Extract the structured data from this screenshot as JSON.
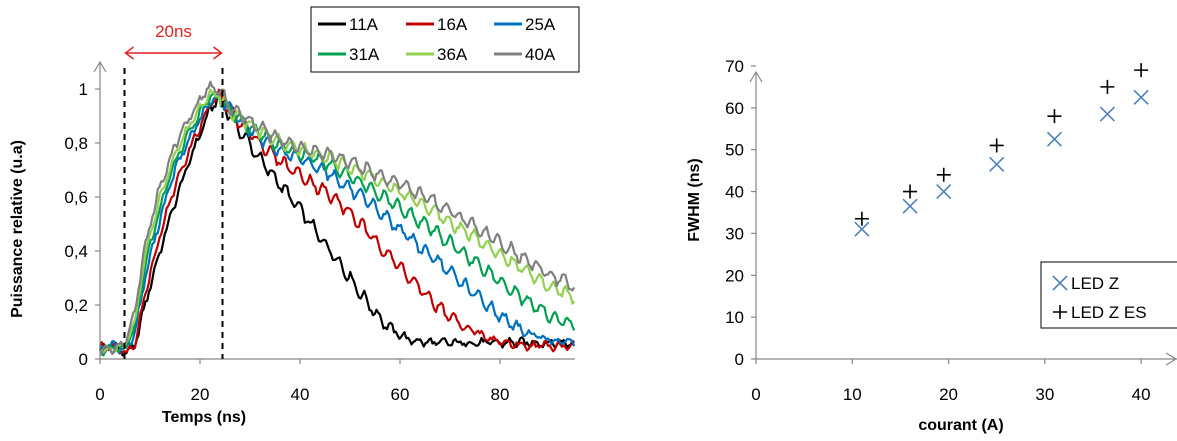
{
  "chart_data": [
    {
      "type": "line",
      "xlabel": "Temps (ns)",
      "ylabel": "Puissance relative (u.a)",
      "xlim": [
        0,
        95
      ],
      "ylim": [
        0,
        1.1
      ],
      "xticks": [
        "0",
        "20",
        "40",
        "60",
        "80"
      ],
      "yticks": [
        "0",
        "0,2",
        "0,4",
        "0,6",
        "0,8",
        "1"
      ],
      "grid": false,
      "legend_position": "top-right",
      "annotation": {
        "text": "20ns",
        "color": "#e02020",
        "x_start": 4.9,
        "x_end": 24.5
      },
      "series": [
        {
          "name": "11A",
          "color": "#000000",
          "x": [
            0,
            3,
            5,
            7,
            9,
            12,
            15,
            18,
            21,
            22,
            24,
            26,
            29,
            32,
            35,
            38,
            41,
            44,
            47,
            50,
            53,
            56,
            59,
            62,
            66,
            70,
            75,
            80,
            85,
            90,
            95
          ],
          "y": [
            0.04,
            0.05,
            0.02,
            0.05,
            0.2,
            0.4,
            0.58,
            0.74,
            0.88,
            0.92,
            0.98,
            0.9,
            0.82,
            0.74,
            0.67,
            0.6,
            0.53,
            0.45,
            0.38,
            0.3,
            0.22,
            0.15,
            0.1,
            0.07,
            0.06,
            0.06,
            0.06,
            0.06,
            0.06,
            0.06,
            0.06
          ]
        },
        {
          "name": "16A",
          "color": "#c00000",
          "x": [
            0,
            3,
            5,
            7,
            9,
            12,
            15,
            18,
            21,
            22,
            24,
            26,
            29,
            33,
            37,
            41,
            45,
            49,
            53,
            57,
            61,
            65,
            69,
            73,
            77,
            81,
            85,
            90,
            95
          ],
          "y": [
            0.04,
            0.05,
            0.02,
            0.06,
            0.24,
            0.46,
            0.64,
            0.78,
            0.9,
            0.94,
            0.98,
            0.92,
            0.86,
            0.78,
            0.72,
            0.67,
            0.62,
            0.56,
            0.48,
            0.4,
            0.32,
            0.24,
            0.17,
            0.12,
            0.08,
            0.06,
            0.05,
            0.05,
            0.05
          ]
        },
        {
          "name": "25A",
          "color": "#0070c0",
          "x": [
            0,
            3,
            5,
            7,
            9,
            12,
            15,
            18,
            21,
            22,
            24,
            26,
            30,
            35,
            40,
            45,
            50,
            55,
            60,
            65,
            70,
            75,
            80,
            85,
            90,
            95
          ],
          "y": [
            0.04,
            0.05,
            0.03,
            0.1,
            0.3,
            0.52,
            0.7,
            0.82,
            0.92,
            0.95,
            0.97,
            0.92,
            0.85,
            0.78,
            0.74,
            0.7,
            0.63,
            0.56,
            0.48,
            0.4,
            0.32,
            0.24,
            0.16,
            0.1,
            0.07,
            0.06
          ]
        },
        {
          "name": "31A",
          "color": "#00a050",
          "x": [
            0,
            3,
            5,
            7,
            9,
            12,
            15,
            18,
            21,
            22,
            24,
            26,
            30,
            35,
            40,
            45,
            50,
            55,
            60,
            65,
            70,
            75,
            80,
            85,
            90,
            95
          ],
          "y": [
            0.03,
            0.04,
            0.04,
            0.12,
            0.34,
            0.56,
            0.73,
            0.85,
            0.94,
            0.97,
            0.97,
            0.92,
            0.86,
            0.8,
            0.76,
            0.73,
            0.68,
            0.62,
            0.56,
            0.5,
            0.43,
            0.36,
            0.29,
            0.22,
            0.16,
            0.12
          ]
        },
        {
          "name": "36A",
          "color": "#92d050",
          "x": [
            0,
            3,
            5,
            7,
            9,
            12,
            15,
            18,
            21,
            22,
            24,
            26,
            30,
            35,
            40,
            45,
            50,
            55,
            60,
            65,
            70,
            75,
            80,
            85,
            90,
            95
          ],
          "y": [
            0.03,
            0.04,
            0.05,
            0.14,
            0.38,
            0.6,
            0.76,
            0.87,
            0.96,
            0.99,
            0.97,
            0.92,
            0.87,
            0.81,
            0.78,
            0.75,
            0.71,
            0.67,
            0.62,
            0.57,
            0.51,
            0.45,
            0.39,
            0.33,
            0.27,
            0.23
          ]
        },
        {
          "name": "40A",
          "color": "#808080",
          "x": [
            0,
            3,
            5,
            7,
            9,
            12,
            15,
            18,
            21,
            22,
            24,
            26,
            30,
            35,
            40,
            45,
            50,
            55,
            60,
            65,
            70,
            75,
            80,
            85,
            90,
            95
          ],
          "y": [
            0.03,
            0.04,
            0.06,
            0.18,
            0.42,
            0.64,
            0.79,
            0.9,
            0.99,
            1.01,
            0.99,
            0.93,
            0.88,
            0.82,
            0.78,
            0.76,
            0.73,
            0.69,
            0.65,
            0.6,
            0.55,
            0.49,
            0.43,
            0.37,
            0.31,
            0.27
          ]
        }
      ]
    },
    {
      "type": "scatter",
      "xlabel": "courant (A)",
      "ylabel": "FWHM (ns)",
      "xlim": [
        0,
        43
      ],
      "ylim": [
        0,
        75
      ],
      "xticks": [
        "0",
        "10",
        "20",
        "30",
        "40"
      ],
      "yticks": [
        "0",
        "10",
        "20",
        "30",
        "40",
        "50",
        "60",
        "70"
      ],
      "grid": false,
      "legend_position": "bottom-right",
      "series": [
        {
          "name": "LED Z",
          "marker": "x",
          "color": "#4f81bd",
          "x": [
            11,
            16,
            19.5,
            25,
            31,
            36.5,
            40
          ],
          "y": [
            31,
            36.5,
            40,
            46.5,
            52.5,
            58.5,
            62.5
          ]
        },
        {
          "name": "LED Z ES",
          "marker": "+",
          "color": "#000000",
          "x": [
            11,
            16,
            19.5,
            25,
            31,
            36.5,
            40
          ],
          "y": [
            33.5,
            40,
            44,
            51,
            58,
            65,
            69
          ]
        }
      ]
    }
  ]
}
